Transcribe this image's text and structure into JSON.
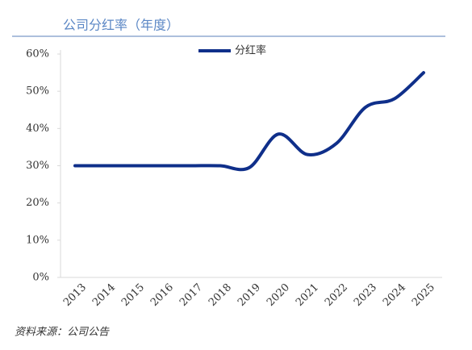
{
  "chart_data": {
    "type": "line",
    "title": "公司分红率（年度）",
    "categories": [
      "2013",
      "2014",
      "2015",
      "2016",
      "2017",
      "2018",
      "2019",
      "2020",
      "2021",
      "2022",
      "2023",
      "2024",
      "2025"
    ],
    "series": [
      {
        "name": "分红率",
        "color": "#0f2f8a",
        "values": [
          30,
          30,
          30,
          30,
          30,
          30,
          29.5,
          38.5,
          33,
          36,
          45.7,
          48,
          55
        ]
      }
    ],
    "ylim": [
      0,
      60
    ],
    "yticks": [
      {
        "value": 0,
        "label": "0%"
      },
      {
        "value": 10,
        "label": "10%"
      },
      {
        "value": 20,
        "label": "20%"
      },
      {
        "value": 30,
        "label": "30%"
      },
      {
        "value": 40,
        "label": "40%"
      },
      {
        "value": 50,
        "label": "50%"
      },
      {
        "value": 60,
        "label": "60%"
      }
    ],
    "source": "资料来源：公司公告"
  }
}
